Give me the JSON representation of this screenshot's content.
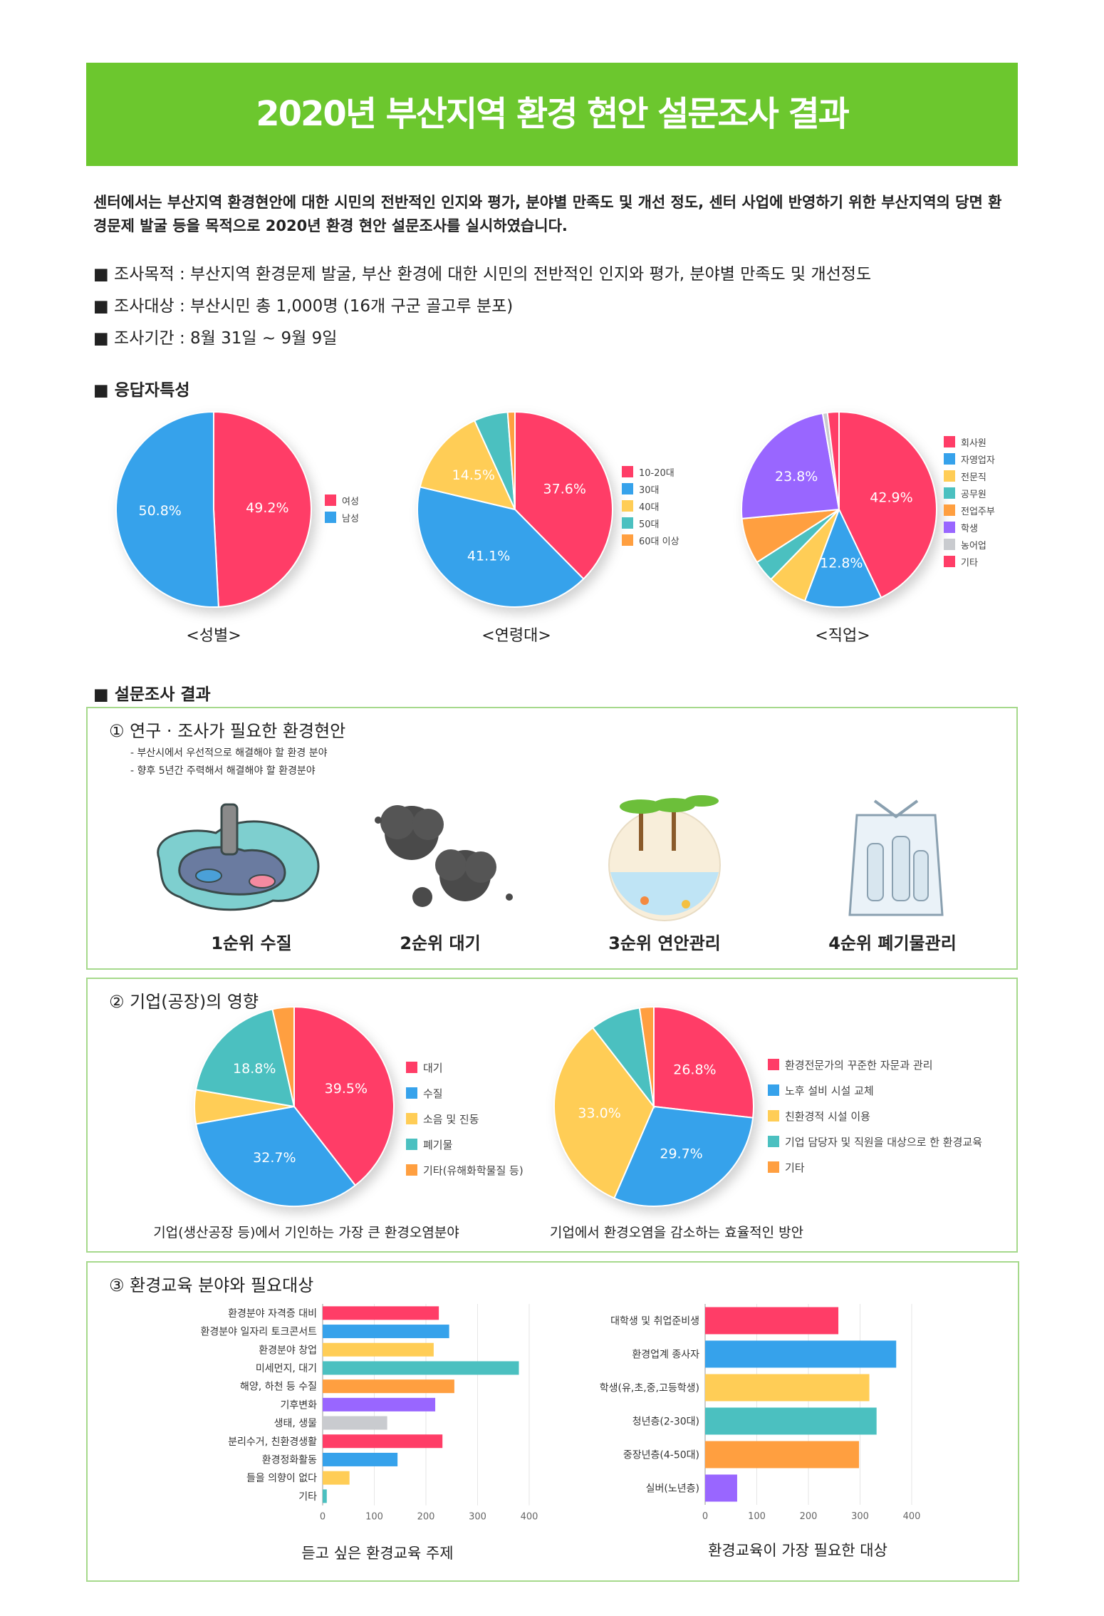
{
  "header": {
    "title": "2020년 부산지역 환경 현안 설문조사 결과"
  },
  "intro": "센터에서는 부산지역 환경현안에 대한 시민의 전반적인 인지와 평가, 분야별 만족도 및 개선 정도, 센터 사업에 반영하기 위한 부산지역의 당면 환경문제 발굴 등을 목적으로 2020년 환경 현안 설문조사를 실시하였습니다.",
  "bullets": [
    "■  조사목적 : 부산지역 환경문제 발굴, 부산 환경에 대한 시민의 전반적인 인지와 평가, 분야별 만족도 및 개선정도",
    "■  조사대상 : 부산시민 총 1,000명 (16개 구군 골고루 분포)",
    "■  조사기간 : 8월 31일 ~ 9월 9일"
  ],
  "respondent_heading": "■  응답자특성",
  "results_heading": "■  설문조사 결과",
  "colors": [
    "#ff3d67",
    "#36a2eb",
    "#ffcd56",
    "#4bc0c0",
    "#ff9f40",
    "#9966ff",
    "#c9cbcf"
  ],
  "section1": {
    "title": "①  연구 · 조사가 필요한 환경현안",
    "notes": [
      "- 부산시에서 우선적으로 해결해야 할 환경 분야",
      "- 향후 5년간 주력해서 해결해야 할 환경분야"
    ],
    "ranks": [
      "1순위 수질",
      "2순위 대기",
      "3순위 연안관리",
      "4순위 폐기물관리"
    ]
  },
  "section2": {
    "title": "②  기업(공장)의 영향"
  },
  "section3": {
    "title": "③  환경교육 분야와 필요대상"
  },
  "chart_data": [
    {
      "type": "pie",
      "title": "<성별>",
      "categories": [
        "여성",
        "남성"
      ],
      "values": [
        49.2,
        50.8
      ],
      "labels": [
        "49.2%",
        "50.8%"
      ]
    },
    {
      "type": "pie",
      "title": "<연령대>",
      "categories": [
        "10-20대",
        "30대",
        "40대",
        "50대",
        "60대 이상"
      ],
      "values": [
        37.6,
        41.1,
        14.5,
        5.6,
        1.2
      ],
      "labels": [
        "37.6%",
        "41.1%",
        "14.5%",
        "",
        ""
      ]
    },
    {
      "type": "pie",
      "title": "<직업>",
      "categories": [
        "회사원",
        "자영업자",
        "전문직",
        "공무원",
        "전업주부",
        "학생",
        "농어업",
        "기타"
      ],
      "values": [
        42.9,
        12.8,
        6.6,
        3.6,
        7.6,
        23.8,
        0.8,
        1.9
      ],
      "labels": [
        "42.9%",
        "12.8%",
        "",
        "",
        "",
        "23.8%",
        "",
        ""
      ]
    },
    {
      "type": "pie",
      "title": "기업(생산공장 등)에서 기인하는 가장 큰 환경오염분야",
      "categories": [
        "대기",
        "수질",
        "소음 및 진동",
        "폐기물",
        "기타(유해화학물질 등)"
      ],
      "values": [
        39.5,
        32.7,
        5.5,
        18.8,
        3.5
      ],
      "labels": [
        "39.5%",
        "32.7%",
        "",
        "18.8%",
        ""
      ]
    },
    {
      "type": "pie",
      "title": "기업에서 환경오염을 감소하는 효율적인 방안",
      "categories": [
        "환경전문가의 꾸준한 자문과 관리",
        "노후 설비 시설 교체",
        "친환경적 시설 이용",
        "기업 담당자 및 직원을 대상으로 한 환경교육",
        "기타"
      ],
      "values": [
        26.8,
        29.7,
        33.0,
        8.2,
        2.3
      ],
      "labels": [
        "26.8%",
        "29.7%",
        "33.0%",
        "",
        ""
      ]
    },
    {
      "type": "bar",
      "orientation": "horizontal",
      "title": "듣고 싶은 환경교육 주제",
      "categories": [
        "환경분야 자격증 대비",
        "환경분야 일자리 토크콘서트",
        "환경분야 창업",
        "미세먼지, 대기",
        "해양, 하천 등 수질",
        "기후변화",
        "생태, 생물",
        "분리수거, 친환경생활",
        "환경정화활동",
        "들을 의향이 없다",
        "기타"
      ],
      "values": [
        225,
        245,
        215,
        380,
        255,
        218,
        125,
        232,
        145,
        52,
        8
      ],
      "xlim": [
        0,
        400
      ],
      "xticks": [
        "0",
        "100",
        "200",
        "300",
        "400"
      ]
    },
    {
      "type": "bar",
      "orientation": "horizontal",
      "title": "환경교육이 가장 필요한 대상",
      "categories": [
        "대학생 및 취업준비생",
        "환경업계 종사자",
        "학생(유,초,중,고등학생)",
        "청년층(2-30대)",
        "중장년층(4-50대)",
        "실버(노년층)"
      ],
      "values": [
        258,
        370,
        318,
        332,
        298,
        62
      ],
      "xlim": [
        0,
        400
      ],
      "xticks": [
        "0",
        "100",
        "200",
        "300",
        "400"
      ]
    }
  ]
}
